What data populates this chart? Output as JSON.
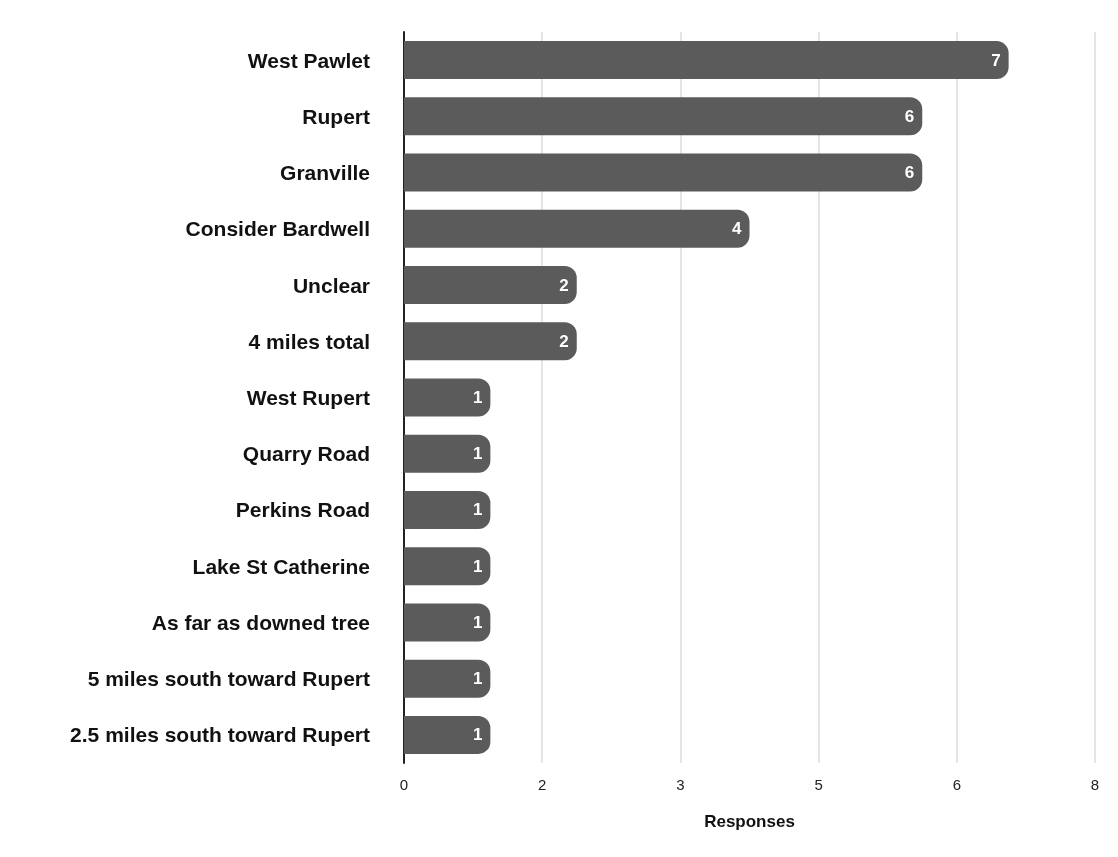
{
  "chart_data": {
    "type": "bar",
    "orientation": "horizontal",
    "xlabel": "Responses",
    "categories": [
      "West Pawlet",
      "Rupert",
      "Granville",
      "Consider Bardwell",
      "Unclear",
      "4 miles total",
      "West Rupert",
      "Quarry Road",
      "Perkins Road",
      "Lake St Catherine",
      "As far as downed tree",
      "5 miles south toward Rupert",
      "2.5 miles south toward Rupert"
    ],
    "values": [
      7,
      6,
      6,
      4,
      2,
      2,
      1,
      1,
      1,
      1,
      1,
      1,
      1
    ],
    "color": "#5b5b5b",
    "xlim": [
      0,
      8
    ],
    "xticks": [
      0,
      {
        "value": 1.6,
        "label": "2"
      },
      {
        "value": 3.2,
        "label": "3"
      },
      {
        "value": 4.8,
        "label": "5"
      },
      {
        "value": 6.4,
        "label": "6"
      },
      {
        "value": 8,
        "label": "8"
      }
    ],
    "grid": "x",
    "data_labels": true
  }
}
